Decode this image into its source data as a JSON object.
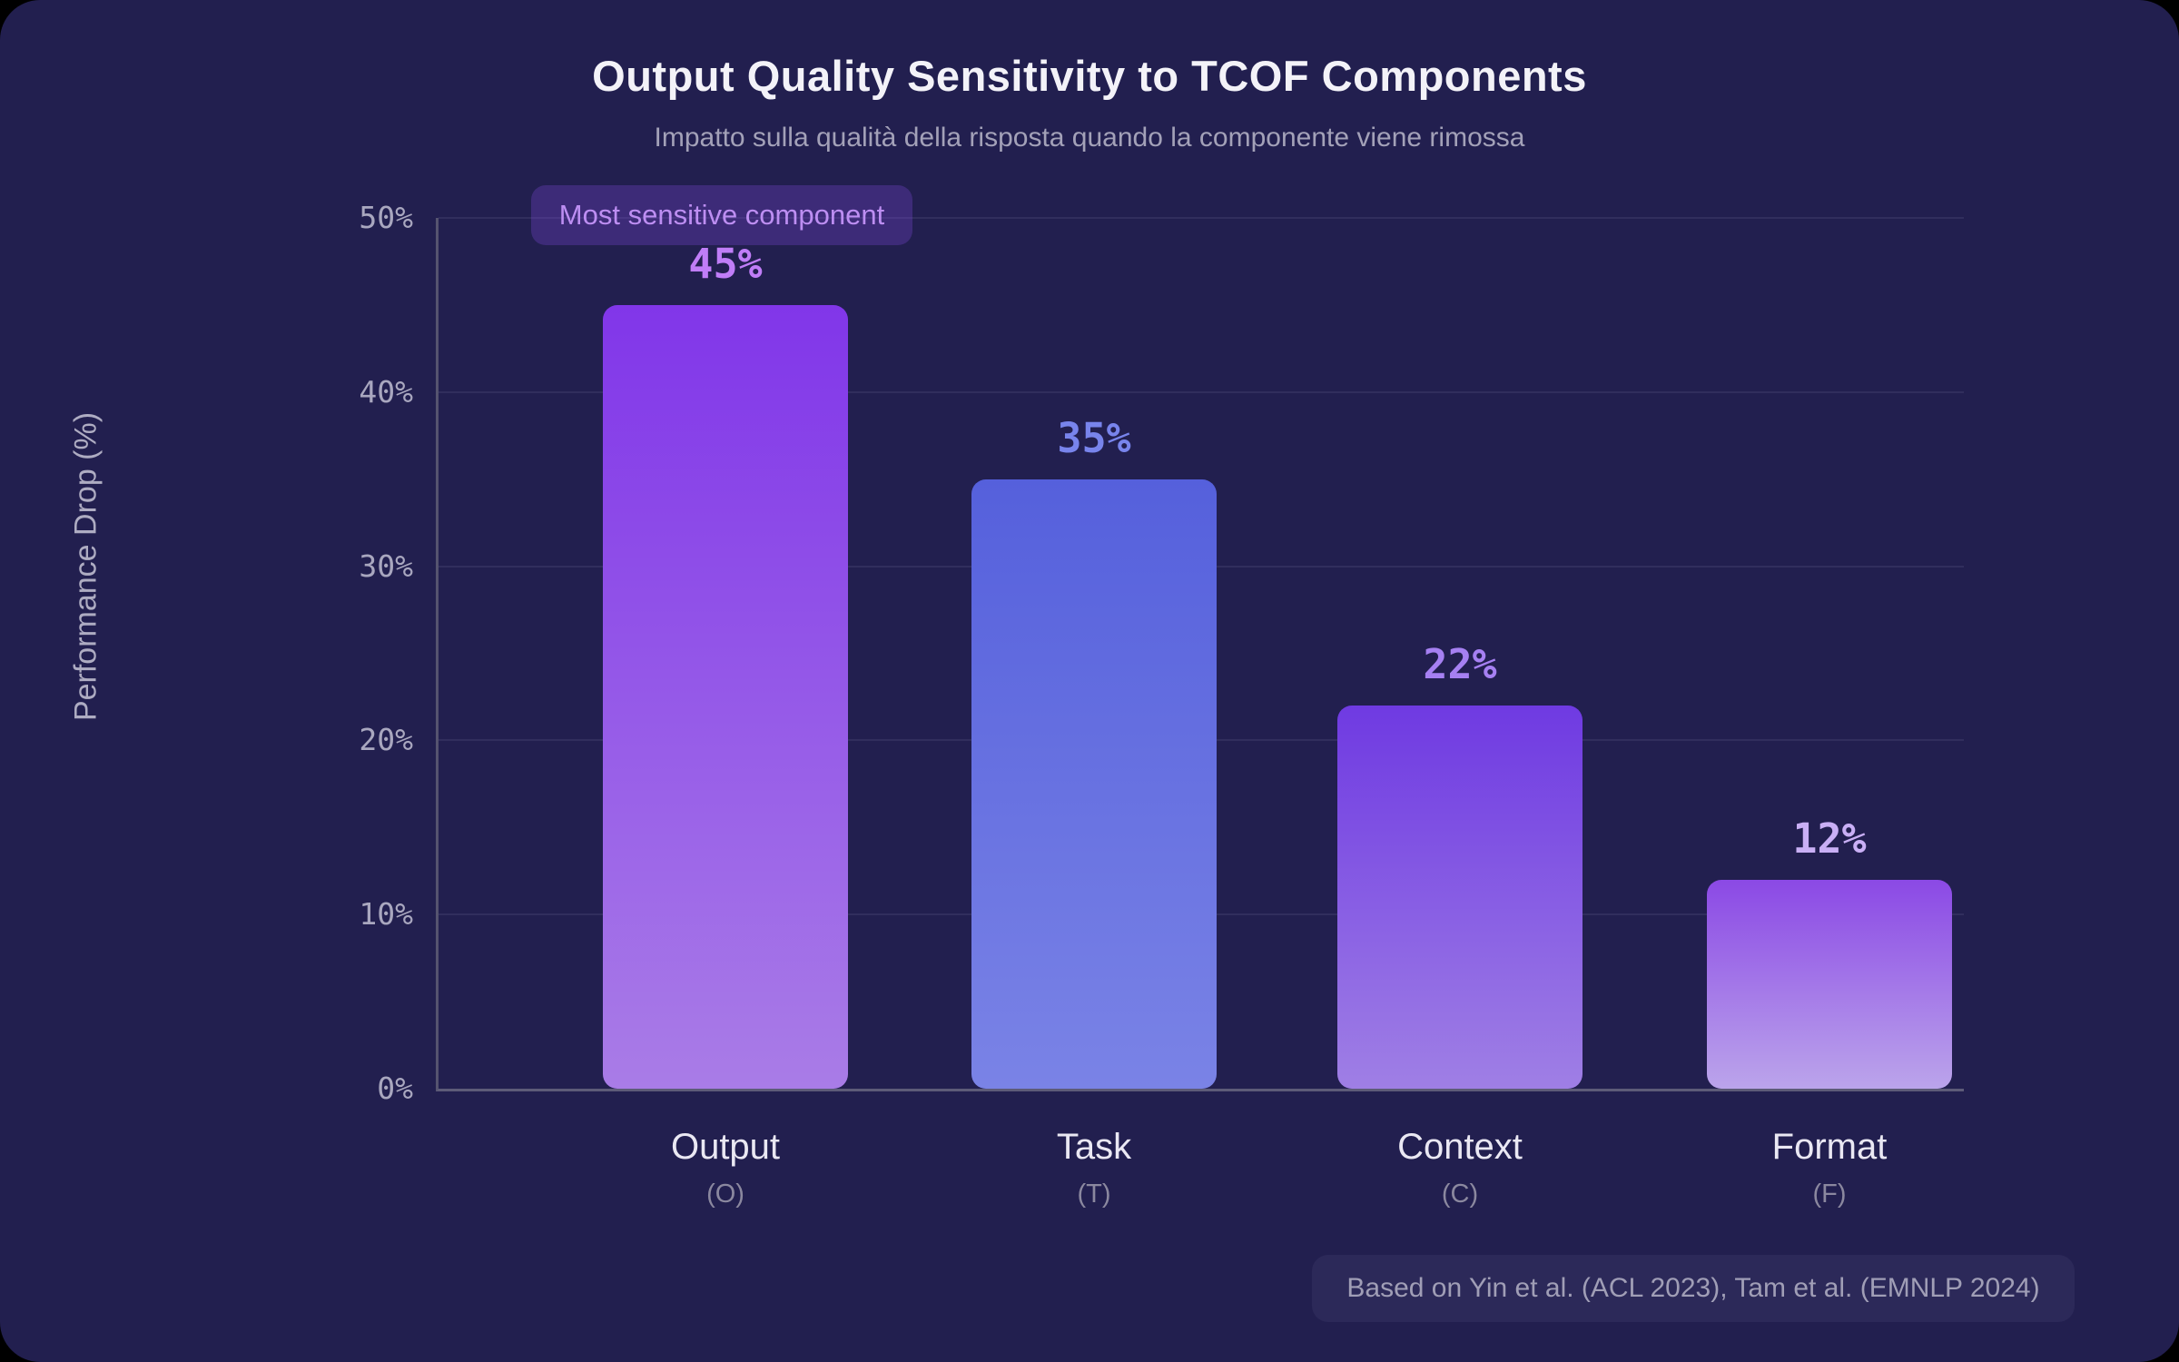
{
  "page": {
    "background": "#221f4f",
    "outer_background": "#000000"
  },
  "header": {
    "title": "Output Quality Sensitivity to TCOF Components",
    "subtitle": "Impatto sulla qualità della risposta quando la componente viene rimossa"
  },
  "badge": {
    "label": "Most sensitive component"
  },
  "footer": {
    "note": "Based on Yin et al. (ACL 2023), Tam et al. (EMNLP 2024)"
  },
  "chart_data": {
    "type": "bar",
    "title": "Output Quality Sensitivity to TCOF Components",
    "subtitle": "Impatto sulla qualità della risposta quando la componente viene rimossa",
    "xlabel": "",
    "ylabel": "Performance Drop (%)",
    "ylim": [
      0,
      50
    ],
    "ytick_step": 10,
    "yticks": [
      "0%",
      "10%",
      "20%",
      "30%",
      "40%",
      "50%"
    ],
    "grid": true,
    "legend": false,
    "categories": [
      "Output",
      "Task",
      "Context",
      "Format"
    ],
    "category_abbrevs": [
      "(O)",
      "(T)",
      "(C)",
      "(F)"
    ],
    "values": [
      45,
      35,
      22,
      12
    ],
    "value_labels": [
      "45%",
      "35%",
      "22%",
      "12%"
    ],
    "value_label_colors": [
      "#c07df7",
      "#7884ec",
      "#a680f2",
      "#c9aff5"
    ],
    "bar_gradients": [
      [
        "#8136e9",
        "#a97ce7"
      ],
      [
        "#5560dc",
        "#7a83e6"
      ],
      [
        "#6f3ae2",
        "#9f7fe5"
      ],
      [
        "#8b49e5",
        "#bba4eb"
      ]
    ],
    "annotation": {
      "text": "Most sensitive component",
      "target": "Output"
    },
    "source_note": "Based on Yin et al. (ACL 2023), Tam et al. (EMNLP 2024)",
    "axis_color": "#55536f",
    "gridline_color": "#312e5d",
    "tick_label_color": "#a9a7bf"
  }
}
